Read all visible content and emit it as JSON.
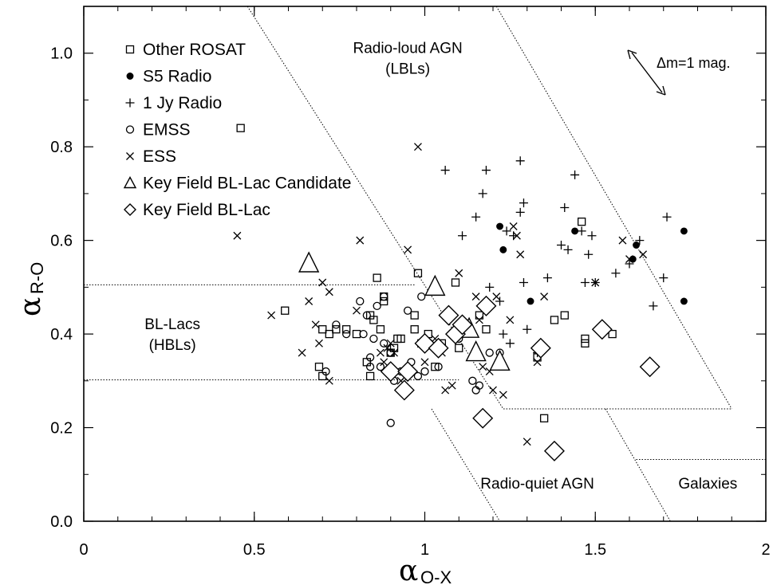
{
  "chart_data": {
    "type": "scatter",
    "title": "",
    "xlabel": "α",
    "xlabel_sub": "O-X",
    "ylabel": "α",
    "ylabel_sub": "R-O",
    "xlim": [
      0,
      2
    ],
    "ylim": [
      0,
      1.1
    ],
    "x_ticks": [
      0,
      0.5,
      1,
      1.5,
      2
    ],
    "x_tick_labels": [
      "0",
      "0.5",
      "1",
      "1.5",
      "2"
    ],
    "y_ticks": [
      0,
      0.2,
      0.4,
      0.6,
      0.8,
      1.0
    ],
    "y_tick_labels": [
      "0.0",
      "0.2",
      "0.4",
      "0.6",
      "0.8",
      "1.0"
    ],
    "grid": false,
    "legend_position": "top-left",
    "annotation": "Δm=1 mag.",
    "region_labels": [
      {
        "id": "lbl",
        "lines": [
          "Radio-loud AGN",
          "(LBLs)"
        ],
        "x": 0.95,
        "y": 1.0
      },
      {
        "id": "hbl",
        "lines": [
          "BL-Lacs",
          "(HBLs)"
        ],
        "x": 0.26,
        "y": 0.41
      },
      {
        "id": "rq",
        "lines": [
          "Radio-quiet AGN"
        ],
        "x": 1.33,
        "y": 0.07
      },
      {
        "id": "gal",
        "lines": [
          "Galaxies"
        ],
        "x": 1.83,
        "y": 0.07
      }
    ],
    "boundaries": [
      {
        "id": "lbl-lower-line",
        "points": [
          [
            0.48,
            1.1
          ],
          [
            1.23,
            0.24
          ],
          [
            1.9,
            0.24
          ]
        ]
      },
      {
        "id": "lbl-upper-line",
        "points": [
          [
            1.21,
            1.1
          ],
          [
            1.9,
            0.24
          ]
        ]
      },
      {
        "id": "hbl-top-line",
        "points": [
          [
            0,
            0.505
          ],
          [
            0.97,
            0.505
          ]
        ]
      },
      {
        "id": "hbl-bottom-line",
        "points": [
          [
            0,
            0.302
          ],
          [
            1.1,
            0.302
          ]
        ]
      },
      {
        "id": "rq-left-line",
        "points": [
          [
            1.02,
            0.24
          ],
          [
            1.22,
            0.0
          ]
        ]
      },
      {
        "id": "gal-left-line",
        "points": [
          [
            1.53,
            0.24
          ],
          [
            1.72,
            0.0
          ]
        ]
      },
      {
        "id": "gal-top-line",
        "points": [
          [
            1.62,
            0.132
          ],
          [
            2.0,
            0.132
          ]
        ]
      }
    ],
    "series": [
      {
        "name": "Other ROSAT",
        "marker": "square",
        "points": [
          [
            0.46,
            0.84
          ],
          [
            0.59,
            0.45
          ],
          [
            0.69,
            0.33
          ],
          [
            0.7,
            0.31
          ],
          [
            0.7,
            0.41
          ],
          [
            0.72,
            0.4
          ],
          [
            0.74,
            0.41
          ],
          [
            0.77,
            0.41
          ],
          [
            0.8,
            0.4
          ],
          [
            0.83,
            0.34
          ],
          [
            0.84,
            0.31
          ],
          [
            0.84,
            0.44
          ],
          [
            0.85,
            0.43
          ],
          [
            0.86,
            0.52
          ],
          [
            0.87,
            0.41
          ],
          [
            0.88,
            0.47
          ],
          [
            0.88,
            0.48
          ],
          [
            0.9,
            0.36
          ],
          [
            0.91,
            0.37
          ],
          [
            0.92,
            0.39
          ],
          [
            0.93,
            0.39
          ],
          [
            0.97,
            0.44
          ],
          [
            0.97,
            0.41
          ],
          [
            0.98,
            0.53
          ],
          [
            0.99,
            0.38
          ],
          [
            1.01,
            0.4
          ],
          [
            1.03,
            0.33
          ],
          [
            1.05,
            0.38
          ],
          [
            1.09,
            0.51
          ],
          [
            1.1,
            0.37
          ],
          [
            1.12,
            0.42
          ],
          [
            1.16,
            0.44
          ],
          [
            1.18,
            0.41
          ],
          [
            1.33,
            0.35
          ],
          [
            1.35,
            0.22
          ],
          [
            1.38,
            0.43
          ],
          [
            1.41,
            0.44
          ],
          [
            1.46,
            0.64
          ],
          [
            1.47,
            0.38
          ],
          [
            1.47,
            0.39
          ],
          [
            1.55,
            0.4
          ]
        ]
      },
      {
        "name": "S5 Radio",
        "marker": "dot",
        "points": [
          [
            1.22,
            0.63
          ],
          [
            1.23,
            0.58
          ],
          [
            1.31,
            0.47
          ],
          [
            1.44,
            0.62
          ],
          [
            1.61,
            0.56
          ],
          [
            1.62,
            0.59
          ],
          [
            1.76,
            0.62
          ],
          [
            1.76,
            0.47
          ]
        ]
      },
      {
        "name": "1 Jy Radio",
        "marker": "plus",
        "points": [
          [
            1.06,
            0.75
          ],
          [
            1.11,
            0.61
          ],
          [
            1.15,
            0.65
          ],
          [
            1.17,
            0.7
          ],
          [
            1.18,
            0.75
          ],
          [
            1.19,
            0.5
          ],
          [
            1.22,
            0.47
          ],
          [
            1.23,
            0.4
          ],
          [
            1.24,
            0.62
          ],
          [
            1.25,
            0.38
          ],
          [
            1.26,
            0.61
          ],
          [
            1.28,
            0.66
          ],
          [
            1.28,
            0.77
          ],
          [
            1.29,
            0.68
          ],
          [
            1.29,
            0.51
          ],
          [
            1.3,
            0.41
          ],
          [
            1.33,
            0.36
          ],
          [
            1.35,
            0.37
          ],
          [
            1.36,
            0.52
          ],
          [
            1.4,
            0.59
          ],
          [
            1.41,
            0.67
          ],
          [
            1.42,
            0.58
          ],
          [
            1.44,
            0.74
          ],
          [
            1.46,
            0.62
          ],
          [
            1.47,
            0.51
          ],
          [
            1.48,
            0.57
          ],
          [
            1.49,
            0.61
          ],
          [
            1.5,
            0.51
          ],
          [
            1.56,
            0.53
          ],
          [
            1.6,
            0.55
          ],
          [
            1.63,
            0.6
          ],
          [
            1.67,
            0.46
          ],
          [
            1.7,
            0.52
          ],
          [
            1.71,
            0.65
          ]
        ]
      },
      {
        "name": "EMSS",
        "marker": "circle",
        "points": [
          [
            0.71,
            0.32
          ],
          [
            0.74,
            0.42
          ],
          [
            0.77,
            0.4
          ],
          [
            0.81,
            0.47
          ],
          [
            0.82,
            0.4
          ],
          [
            0.83,
            0.44
          ],
          [
            0.84,
            0.33
          ],
          [
            0.84,
            0.35
          ],
          [
            0.85,
            0.39
          ],
          [
            0.86,
            0.46
          ],
          [
            0.87,
            0.33
          ],
          [
            0.88,
            0.48
          ],
          [
            0.88,
            0.38
          ],
          [
            0.9,
            0.21
          ],
          [
            0.9,
            0.36
          ],
          [
            0.91,
            0.3
          ],
          [
            0.93,
            0.32
          ],
          [
            0.95,
            0.45
          ],
          [
            0.96,
            0.34
          ],
          [
            0.98,
            0.31
          ],
          [
            0.99,
            0.48
          ],
          [
            1.0,
            0.32
          ],
          [
            1.04,
            0.33
          ],
          [
            1.1,
            0.39
          ],
          [
            1.14,
            0.3
          ],
          [
            1.15,
            0.28
          ],
          [
            1.16,
            0.29
          ],
          [
            1.19,
            0.36
          ],
          [
            1.22,
            0.36
          ]
        ]
      },
      {
        "name": "ESS",
        "marker": "cross",
        "points": [
          [
            0.45,
            0.61
          ],
          [
            0.55,
            0.44
          ],
          [
            0.64,
            0.36
          ],
          [
            0.66,
            0.47
          ],
          [
            0.68,
            0.42
          ],
          [
            0.69,
            0.38
          ],
          [
            0.7,
            0.51
          ],
          [
            0.72,
            0.3
          ],
          [
            0.72,
            0.49
          ],
          [
            0.8,
            0.45
          ],
          [
            0.81,
            0.6
          ],
          [
            0.87,
            0.36
          ],
          [
            0.88,
            0.34
          ],
          [
            0.89,
            0.37
          ],
          [
            0.9,
            0.38
          ],
          [
            0.91,
            0.36
          ],
          [
            0.93,
            0.3
          ],
          [
            0.95,
            0.58
          ],
          [
            0.98,
            0.8
          ],
          [
            1.0,
            0.34
          ],
          [
            1.01,
            0.38
          ],
          [
            1.03,
            0.39
          ],
          [
            1.05,
            0.36
          ],
          [
            1.06,
            0.28
          ],
          [
            1.08,
            0.29
          ],
          [
            1.1,
            0.53
          ],
          [
            1.12,
            0.4
          ],
          [
            1.15,
            0.48
          ],
          [
            1.16,
            0.43
          ],
          [
            1.17,
            0.33
          ],
          [
            1.19,
            0.32
          ],
          [
            1.2,
            0.28
          ],
          [
            1.21,
            0.48
          ],
          [
            1.23,
            0.27
          ],
          [
            1.25,
            0.43
          ],
          [
            1.26,
            0.63
          ],
          [
            1.27,
            0.61
          ],
          [
            1.28,
            0.57
          ],
          [
            1.3,
            0.17
          ],
          [
            1.33,
            0.34
          ],
          [
            1.35,
            0.48
          ],
          [
            1.5,
            0.51
          ],
          [
            1.58,
            0.6
          ],
          [
            1.6,
            0.56
          ],
          [
            1.64,
            0.57
          ]
        ]
      },
      {
        "name": "Key Field BL-Lac Candidate",
        "marker": "triangle",
        "points": [
          [
            0.66,
            0.55
          ],
          [
            1.03,
            0.5
          ],
          [
            1.13,
            0.41
          ],
          [
            1.15,
            0.36
          ],
          [
            1.22,
            0.34
          ]
        ]
      },
      {
        "name": "Key Field BL-Lac",
        "marker": "diamond",
        "points": [
          [
            0.9,
            0.32
          ],
          [
            0.94,
            0.28
          ],
          [
            0.95,
            0.32
          ],
          [
            1.0,
            0.38
          ],
          [
            1.04,
            0.37
          ],
          [
            1.07,
            0.44
          ],
          [
            1.09,
            0.4
          ],
          [
            1.11,
            0.42
          ],
          [
            1.17,
            0.22
          ],
          [
            1.18,
            0.46
          ],
          [
            1.34,
            0.37
          ],
          [
            1.38,
            0.15
          ],
          [
            1.52,
            0.41
          ],
          [
            1.66,
            0.33
          ]
        ]
      }
    ]
  }
}
